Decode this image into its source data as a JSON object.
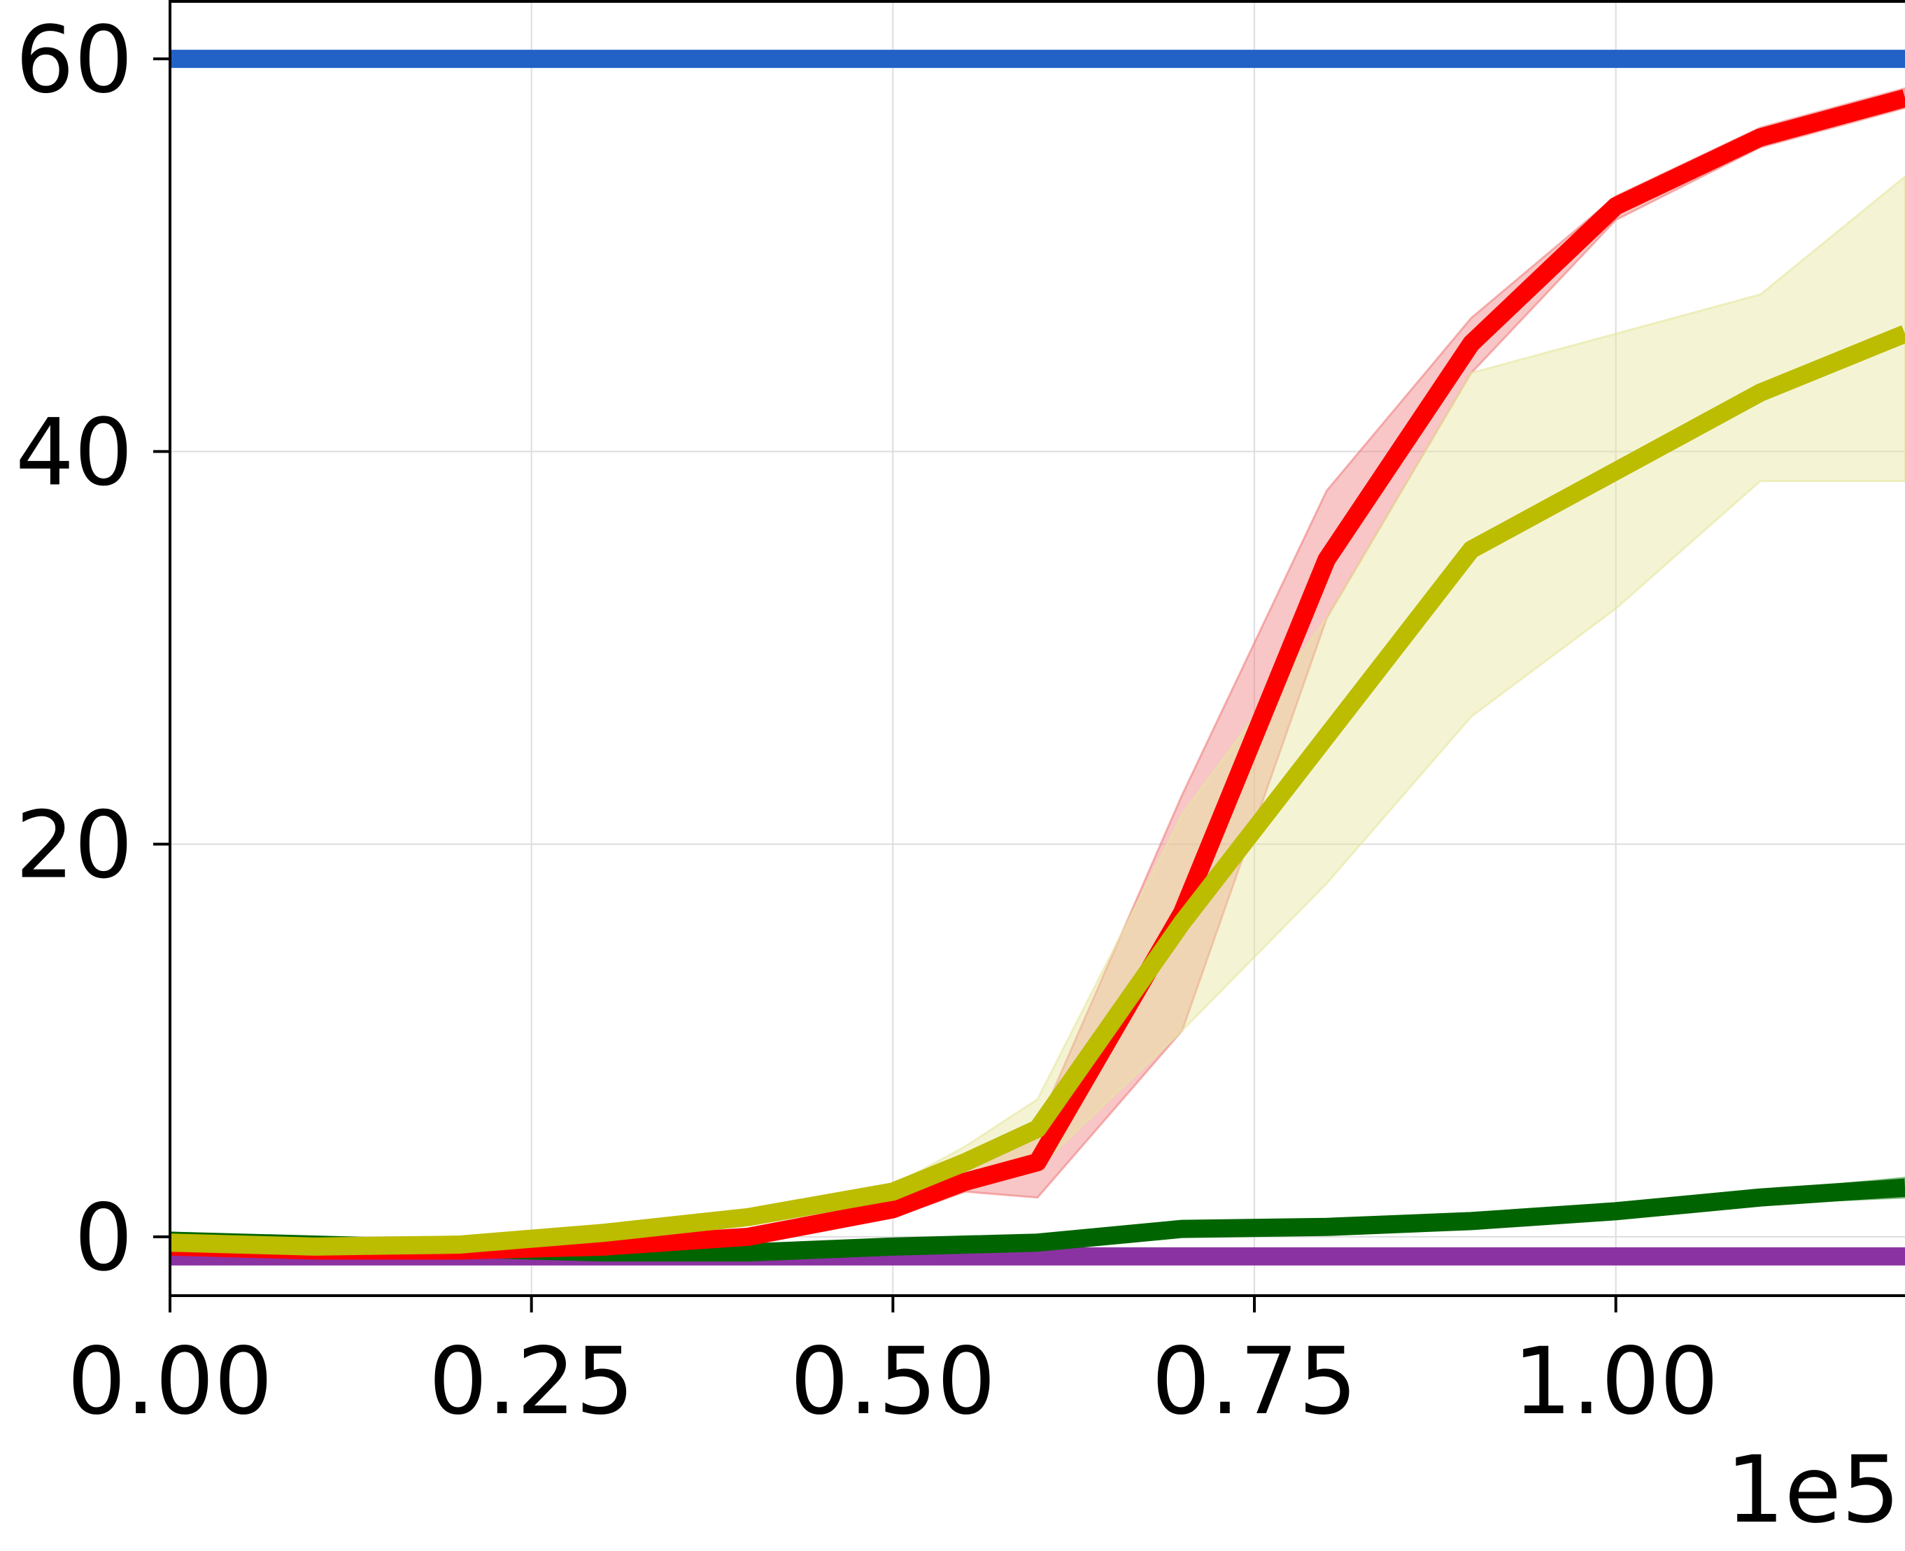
{
  "chart_data": {
    "type": "line",
    "title": "",
    "xlabel": "",
    "ylabel": "",
    "x_offset_label": "1e5",
    "xlim": [
      0,
      1.2
    ],
    "ylim": [
      -3,
      63
    ],
    "grid": true,
    "x_ticks": [
      {
        "value": 0.0,
        "label": "0.00"
      },
      {
        "value": 0.25,
        "label": "0.25"
      },
      {
        "value": 0.5,
        "label": "0.50"
      },
      {
        "value": 0.75,
        "label": "0.75"
      },
      {
        "value": 1.0,
        "label": "1.00"
      }
    ],
    "y_ticks": [
      {
        "value": 0,
        "label": "0"
      },
      {
        "value": 20,
        "label": "20"
      },
      {
        "value": 40,
        "label": "40"
      },
      {
        "value": 60,
        "label": "60"
      }
    ],
    "x": [
      0.0,
      0.1,
      0.2,
      0.3,
      0.4,
      0.5,
      0.55,
      0.6,
      0.7,
      0.8,
      0.9,
      1.0,
      1.1,
      1.2
    ],
    "series": [
      {
        "color": "#2262c6",
        "values": [
          60,
          60,
          60,
          60,
          60,
          60,
          60,
          60,
          60,
          60,
          60,
          60,
          60,
          60
        ]
      },
      {
        "color": "#8b32a2",
        "values": [
          -1,
          -1,
          -1,
          -1,
          -1,
          -1,
          -1,
          -1,
          -1,
          -1,
          -1,
          -1,
          -1,
          -1
        ]
      },
      {
        "color": "#006400",
        "band_color": "#3a9a3a",
        "values": [
          -0.2,
          -0.4,
          -0.6,
          -0.8,
          -0.8,
          -0.5,
          -0.4,
          -0.3,
          0.4,
          0.5,
          0.8,
          1.3,
          2.0,
          2.5
        ],
        "lower": [
          -0.3,
          -0.5,
          -0.7,
          -0.9,
          -0.9,
          -0.6,
          -0.5,
          -0.4,
          0.3,
          0.4,
          0.6,
          1.1,
          1.7,
          2.0
        ],
        "upper": [
          -0.1,
          -0.3,
          -0.5,
          -0.7,
          -0.7,
          -0.4,
          -0.3,
          -0.2,
          0.5,
          0.6,
          1.0,
          1.5,
          2.3,
          3.0
        ]
      },
      {
        "color": "#ff0000",
        "band_color": "#f08080",
        "values": [
          -0.5,
          -0.7,
          -0.7,
          -0.5,
          0.0,
          1.4,
          2.8,
          3.8,
          16.5,
          34.5,
          45.5,
          52.5,
          56.0,
          58.0
        ],
        "lower": [
          -0.6,
          -0.8,
          -0.8,
          -0.6,
          -0.2,
          1.0,
          2.3,
          2.0,
          10.5,
          31.5,
          44.0,
          51.8,
          55.5,
          57.5
        ],
        "upper": [
          -0.4,
          -0.6,
          -0.6,
          -0.4,
          0.2,
          1.8,
          3.3,
          5.6,
          22.5,
          38.0,
          46.8,
          53.0,
          56.5,
          58.5
        ]
      },
      {
        "color": "#bcbc00",
        "band_color": "#e6e6a0",
        "values": [
          -0.3,
          -0.5,
          -0.4,
          0.2,
          1.0,
          2.3,
          3.8,
          5.5,
          16.0,
          25.5,
          35.0,
          39.0,
          43.0,
          46.0
        ],
        "lower": [
          -0.4,
          -0.6,
          -0.5,
          0.1,
          0.8,
          2.0,
          3.0,
          3.5,
          10.5,
          18.0,
          26.5,
          32.0,
          38.5,
          38.5
        ],
        "upper": [
          -0.2,
          -0.4,
          -0.3,
          0.3,
          1.2,
          2.6,
          4.6,
          7.0,
          21.5,
          31.5,
          44.0,
          46.0,
          48.0,
          54.0
        ]
      }
    ]
  }
}
